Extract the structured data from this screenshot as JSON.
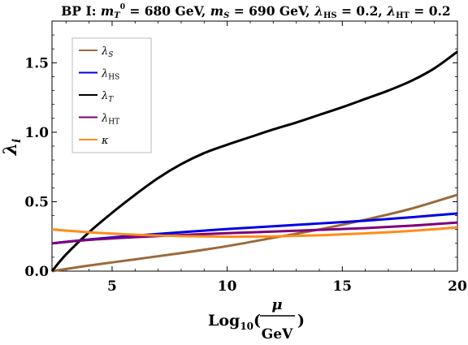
{
  "chart_data": {
    "type": "line",
    "title": {
      "prefix": "BP I: ",
      "m_T_sym": "m",
      "m_T_sub": "T",
      "m_T_sup": "0",
      "m_T_val": " = 680 GeV, ",
      "m_S_sym": "m",
      "m_S_sub": "S",
      "m_S_val": " = 690 GeV, ",
      "l_HS_sym": "λ",
      "l_HS_sub": "HS",
      "l_HS_val": " = 0.2, ",
      "l_HT_sym": "λ",
      "l_HT_sub": "HT",
      "l_HT_val": " = 0.2"
    },
    "xlabel": {
      "log": "Log",
      "sub": "10",
      "open": "(",
      "num": "μ",
      "den": "GeV",
      "close": ")"
    },
    "ylabel": {
      "sym": "λ",
      "sub": "i"
    },
    "xlim": [
      2.39,
      20
    ],
    "ylim": [
      0,
      1.8
    ],
    "xticks": [
      {
        "value": 5,
        "label": "5"
      },
      {
        "value": 10,
        "label": "10"
      },
      {
        "value": 15,
        "label": "15"
      },
      {
        "value": 20,
        "label": "20"
      }
    ],
    "yticks": [
      {
        "value": 0.0,
        "label": "0.0"
      },
      {
        "value": 0.5,
        "label": "0.5"
      },
      {
        "value": 1.0,
        "label": "1.0"
      },
      {
        "value": 1.5,
        "label": "1.5"
      }
    ],
    "grid": false,
    "legend_position": "top-left",
    "series": [
      {
        "name_sym": "λ",
        "name_sub": "S",
        "color": "#9b6a3c",
        "x": [
          2.39,
          4,
          6,
          8,
          10,
          12,
          14,
          16,
          18,
          20
        ],
        "y": [
          0.0,
          0.04,
          0.085,
          0.13,
          0.18,
          0.24,
          0.3,
          0.37,
          0.45,
          0.55
        ]
      },
      {
        "name_sym": "λ",
        "name_sub": "HS",
        "color": "#0000e6",
        "x": [
          2.39,
          4,
          6,
          8,
          10,
          12,
          14,
          16,
          18,
          20
        ],
        "y": [
          0.2,
          0.228,
          0.256,
          0.28,
          0.303,
          0.323,
          0.343,
          0.363,
          0.388,
          0.415
        ]
      },
      {
        "name_sym": "λ",
        "name_sub": "T",
        "color": "#000000",
        "x": [
          2.39,
          3,
          4,
          5,
          6,
          7,
          8,
          9,
          10,
          11,
          12,
          13,
          14,
          15,
          16,
          17,
          18,
          19,
          20
        ],
        "y": [
          0.0,
          0.12,
          0.28,
          0.42,
          0.55,
          0.67,
          0.77,
          0.85,
          0.91,
          0.965,
          1.02,
          1.07,
          1.125,
          1.18,
          1.24,
          1.3,
          1.37,
          1.46,
          1.58
        ]
      },
      {
        "name_sym": "λ",
        "name_sub": "HT",
        "color": "#7c007c",
        "x": [
          2.39,
          4,
          6,
          8,
          10,
          12,
          14,
          16,
          18,
          20
        ],
        "y": [
          0.2,
          0.225,
          0.245,
          0.26,
          0.273,
          0.285,
          0.297,
          0.31,
          0.327,
          0.35
        ]
      },
      {
        "name_sym": "κ",
        "name_sub": "",
        "color": "#ff8c1a",
        "x": [
          2.39,
          4,
          6,
          8,
          10,
          12,
          14,
          16,
          18,
          20
        ],
        "y": [
          0.3,
          0.28,
          0.262,
          0.252,
          0.248,
          0.25,
          0.258,
          0.272,
          0.29,
          0.315
        ]
      }
    ]
  }
}
